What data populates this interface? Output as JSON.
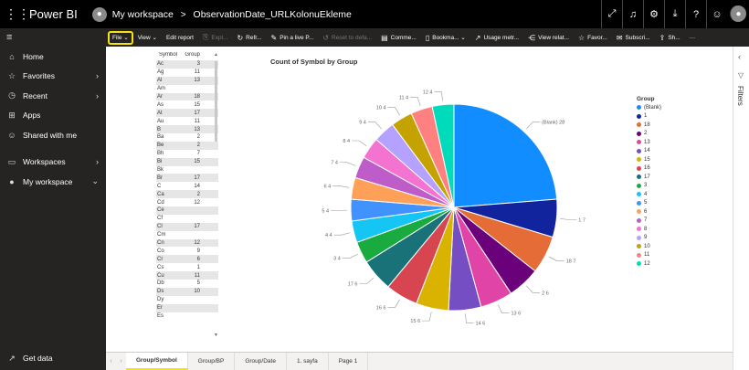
{
  "topbar": {
    "brand": "Power BI",
    "workspace": "My workspace",
    "separator": ">",
    "report_name": "ObservationDate_URLKolonuEkleme",
    "icons": [
      "expand-icon",
      "bell-icon",
      "settings-icon",
      "download-icon",
      "help-icon",
      "smiley-icon",
      "account-icon"
    ]
  },
  "sidebar": {
    "collapse_glyph": "≡",
    "items": [
      {
        "label": "Home",
        "icon": "⌂"
      },
      {
        "label": "Favorites",
        "icon": "☆",
        "chevron": "›"
      },
      {
        "label": "Recent",
        "icon": "◷",
        "chevron": "›"
      },
      {
        "label": "Apps",
        "icon": "⊞"
      },
      {
        "label": "Shared with me",
        "icon": "☺"
      }
    ],
    "items2": [
      {
        "label": "Workspaces",
        "icon": "▭",
        "chevron": "›"
      },
      {
        "label": "My workspace",
        "icon": "●",
        "chevron": "⌄"
      }
    ],
    "get_data": {
      "label": "Get data",
      "icon": "↗"
    }
  },
  "ribbon": {
    "file": "File ⌄",
    "view": "View ⌄",
    "edit_report": "Edit report",
    "export": "Expl...",
    "refresh": "Refr...",
    "pin": "Pin a live P...",
    "reset": "Reset to defa...",
    "comments": "Comme...",
    "bookmarks": "Bookma... ⌄",
    "usage": "Usage metr...",
    "related": "View relat...",
    "favorite": "Favor...",
    "subscribe": "Subscri...",
    "share": "Sh...",
    "more": "···"
  },
  "table": {
    "headers": [
      "Symbol",
      "Group"
    ],
    "rows": [
      [
        "Ac",
        "3"
      ],
      [
        "Ag",
        "11"
      ],
      [
        "Al",
        "13"
      ],
      [
        "Am",
        ""
      ],
      [
        "Ar",
        "18"
      ],
      [
        "As",
        "15"
      ],
      [
        "At",
        "17"
      ],
      [
        "Au",
        "11"
      ],
      [
        "B",
        "13"
      ],
      [
        "Ba",
        "2"
      ],
      [
        "Be",
        "2"
      ],
      [
        "Bh",
        "7"
      ],
      [
        "Bi",
        "15"
      ],
      [
        "Bk",
        ""
      ],
      [
        "Br",
        "17"
      ],
      [
        "C",
        "14"
      ],
      [
        "Ca",
        "2"
      ],
      [
        "Cd",
        "12"
      ],
      [
        "Ce",
        ""
      ],
      [
        "Cf",
        ""
      ],
      [
        "Cl",
        "17"
      ],
      [
        "Cm",
        ""
      ],
      [
        "Cn",
        "12"
      ],
      [
        "Co",
        "9"
      ],
      [
        "Cr",
        "6"
      ],
      [
        "Cs",
        "1"
      ],
      [
        "Cu",
        "11"
      ],
      [
        "Db",
        "5"
      ],
      [
        "Ds",
        "10"
      ],
      [
        "Dy",
        ""
      ],
      [
        "Er",
        ""
      ],
      [
        "Es",
        ""
      ]
    ]
  },
  "chart_data": {
    "type": "pie",
    "title": "Count of Symbol by Group",
    "legend_title": "Group",
    "legend_position": "right",
    "slices": [
      {
        "name": "(Blank)",
        "value": 28,
        "color": "#118DFF"
      },
      {
        "name": "1",
        "value": 7,
        "color": "#12239E"
      },
      {
        "name": "18",
        "value": 7,
        "color": "#E66C37"
      },
      {
        "name": "2",
        "value": 6,
        "color": "#6B007B"
      },
      {
        "name": "13",
        "value": 6,
        "color": "#E044A7"
      },
      {
        "name": "14",
        "value": 6,
        "color": "#744EC2"
      },
      {
        "name": "15",
        "value": 6,
        "color": "#D9B300"
      },
      {
        "name": "16",
        "value": 6,
        "color": "#D64550"
      },
      {
        "name": "17",
        "value": 6,
        "color": "#197278"
      },
      {
        "name": "3",
        "value": 4,
        "color": "#1AAB40"
      },
      {
        "name": "4",
        "value": 4,
        "color": "#15C6F4"
      },
      {
        "name": "5",
        "value": 4,
        "color": "#4092FF"
      },
      {
        "name": "6",
        "value": 4,
        "color": "#FFA058"
      },
      {
        "name": "7",
        "value": 4,
        "color": "#BE5DC9"
      },
      {
        "name": "8",
        "value": 4,
        "color": "#F472D0"
      },
      {
        "name": "9",
        "value": 4,
        "color": "#B5A1FF"
      },
      {
        "name": "10",
        "value": 4,
        "color": "#C4A200"
      },
      {
        "name": "11",
        "value": 4,
        "color": "#FF8080"
      },
      {
        "name": "12",
        "value": 4,
        "color": "#00DBBC"
      }
    ],
    "data_labels": [
      "(Blank) 28",
      "1 7",
      "18 7",
      "2 6",
      "13 6",
      "14 6",
      "15 6",
      "16 6",
      "17 6",
      "3 4",
      "4 4",
      "5 4",
      "6 4",
      "7 4",
      "8 4",
      "9 4",
      "10 4",
      "11 4",
      "12 4"
    ]
  },
  "filters": {
    "label": "Filters",
    "chevron": "‹",
    "icon": "▽"
  },
  "tabs": [
    {
      "label": "Group/Symbol",
      "active": true
    },
    {
      "label": "Group/BP",
      "active": false
    },
    {
      "label": "Group/Date",
      "active": false
    },
    {
      "label": "1. sayfa",
      "active": false
    },
    {
      "label": "Page 1",
      "active": false
    }
  ],
  "tab_nav": [
    "‹",
    "›"
  ]
}
